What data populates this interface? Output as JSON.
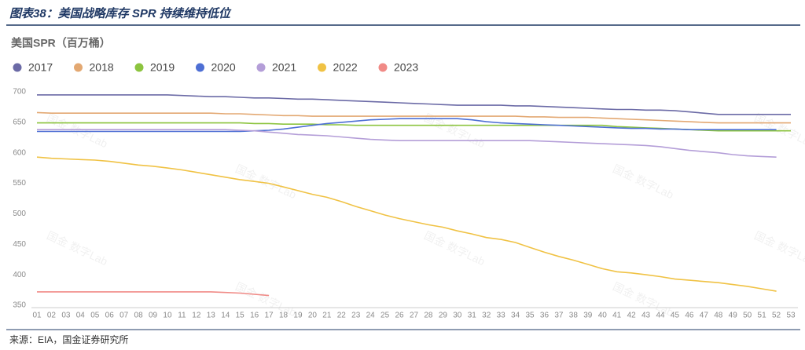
{
  "chart_data": {
    "type": "line",
    "figure_title": "图表38：美国战略库存 SPR 持续维持低位",
    "title": "美国SPR（百万桶）",
    "source": "来源：EIA，国金证券研究所",
    "watermark": "国金 数字Lab",
    "categories": [
      "01",
      "02",
      "03",
      "04",
      "05",
      "06",
      "07",
      "08",
      "09",
      "10",
      "11",
      "12",
      "13",
      "14",
      "15",
      "16",
      "17",
      "18",
      "19",
      "20",
      "21",
      "22",
      "23",
      "24",
      "25",
      "26",
      "27",
      "28",
      "29",
      "30",
      "31",
      "32",
      "33",
      "34",
      "35",
      "36",
      "37",
      "38",
      "39",
      "40",
      "41",
      "42",
      "43",
      "44",
      "45",
      "46",
      "47",
      "48",
      "49",
      "50",
      "51",
      "52",
      "53"
    ],
    "ylim": [
      350,
      700
    ],
    "yticks": [
      350,
      400,
      450,
      500,
      550,
      600,
      650,
      700
    ],
    "grid": false,
    "series": [
      {
        "name": "2017",
        "color": "#6b6aa6",
        "values": [
          695,
          695,
          695,
          695,
          695,
          695,
          695,
          695,
          695,
          695,
          694,
          693,
          692,
          692,
          691,
          690,
          690,
          689,
          688,
          688,
          687,
          686,
          685,
          684,
          683,
          682,
          681,
          680,
          679,
          678,
          678,
          678,
          678,
          677,
          677,
          676,
          675,
          674,
          673,
          672,
          671,
          671,
          670,
          670,
          669,
          667,
          665,
          663,
          663,
          663,
          663,
          663,
          663
        ]
      },
      {
        "name": "2018",
        "color": "#e3a872",
        "values": [
          666,
          665,
          665,
          665,
          665,
          665,
          665,
          665,
          665,
          665,
          665,
          665,
          665,
          664,
          664,
          663,
          662,
          661,
          661,
          660,
          660,
          660,
          660,
          660,
          660,
          660,
          660,
          660,
          660,
          660,
          660,
          660,
          660,
          660,
          659,
          659,
          658,
          658,
          658,
          657,
          656,
          655,
          654,
          653,
          652,
          651,
          650,
          649,
          649,
          649,
          649,
          649,
          649
        ]
      },
      {
        "name": "2019",
        "color": "#8cc43f",
        "values": [
          649,
          649,
          649,
          649,
          649,
          649,
          649,
          649,
          649,
          649,
          649,
          649,
          649,
          649,
          649,
          648,
          648,
          647,
          647,
          647,
          646,
          646,
          645,
          645,
          645,
          645,
          645,
          645,
          645,
          645,
          645,
          645,
          645,
          645,
          645,
          645,
          645,
          645,
          645,
          645,
          643,
          642,
          641,
          640,
          639,
          638,
          637,
          636,
          636,
          636,
          636,
          636,
          636
        ]
      },
      {
        "name": "2020",
        "color": "#4e6fd4",
        "values": [
          635,
          635,
          635,
          635,
          635,
          635,
          635,
          635,
          635,
          635,
          635,
          635,
          635,
          635,
          635,
          636,
          637,
          639,
          642,
          645,
          648,
          650,
          652,
          654,
          655,
          656,
          656,
          656,
          656,
          656,
          654,
          651,
          649,
          648,
          647,
          646,
          645,
          644,
          643,
          642,
          641,
          640,
          640,
          639,
          639,
          638,
          638,
          638,
          638,
          638,
          638,
          638,
          null
        ]
      },
      {
        "name": "2021",
        "color": "#b49ed8",
        "values": [
          638,
          638,
          638,
          638,
          638,
          638,
          638,
          638,
          638,
          638,
          638,
          638,
          638,
          638,
          637,
          636,
          634,
          632,
          630,
          629,
          628,
          626,
          624,
          622,
          621,
          620,
          620,
          620,
          620,
          620,
          620,
          620,
          620,
          620,
          620,
          619,
          618,
          617,
          616,
          615,
          614,
          613,
          612,
          610,
          607,
          604,
          602,
          600,
          597,
          595,
          594,
          593,
          null
        ]
      },
      {
        "name": "2022",
        "color": "#f0c244",
        "values": [
          593,
          591,
          590,
          589,
          588,
          586,
          583,
          580,
          578,
          575,
          572,
          568,
          564,
          560,
          556,
          553,
          550,
          544,
          538,
          532,
          527,
          520,
          512,
          505,
          498,
          492,
          487,
          482,
          478,
          472,
          467,
          461,
          458,
          453,
          445,
          437,
          430,
          424,
          417,
          410,
          405,
          403,
          400,
          397,
          393,
          391,
          389,
          387,
          384,
          381,
          377,
          373,
          null
        ]
      },
      {
        "name": "2023",
        "color": "#f08a86",
        "values": [
          372,
          372,
          372,
          372,
          372,
          372,
          372,
          372,
          372,
          372,
          372,
          372,
          372,
          371,
          370,
          368,
          366,
          null,
          null,
          null,
          null,
          null,
          null,
          null,
          null,
          null,
          null,
          null,
          null,
          null,
          null,
          null,
          null,
          null,
          null,
          null,
          null,
          null,
          null,
          null,
          null,
          null,
          null,
          null,
          null,
          null,
          null,
          null,
          null,
          null,
          null,
          null,
          null
        ]
      }
    ]
  }
}
